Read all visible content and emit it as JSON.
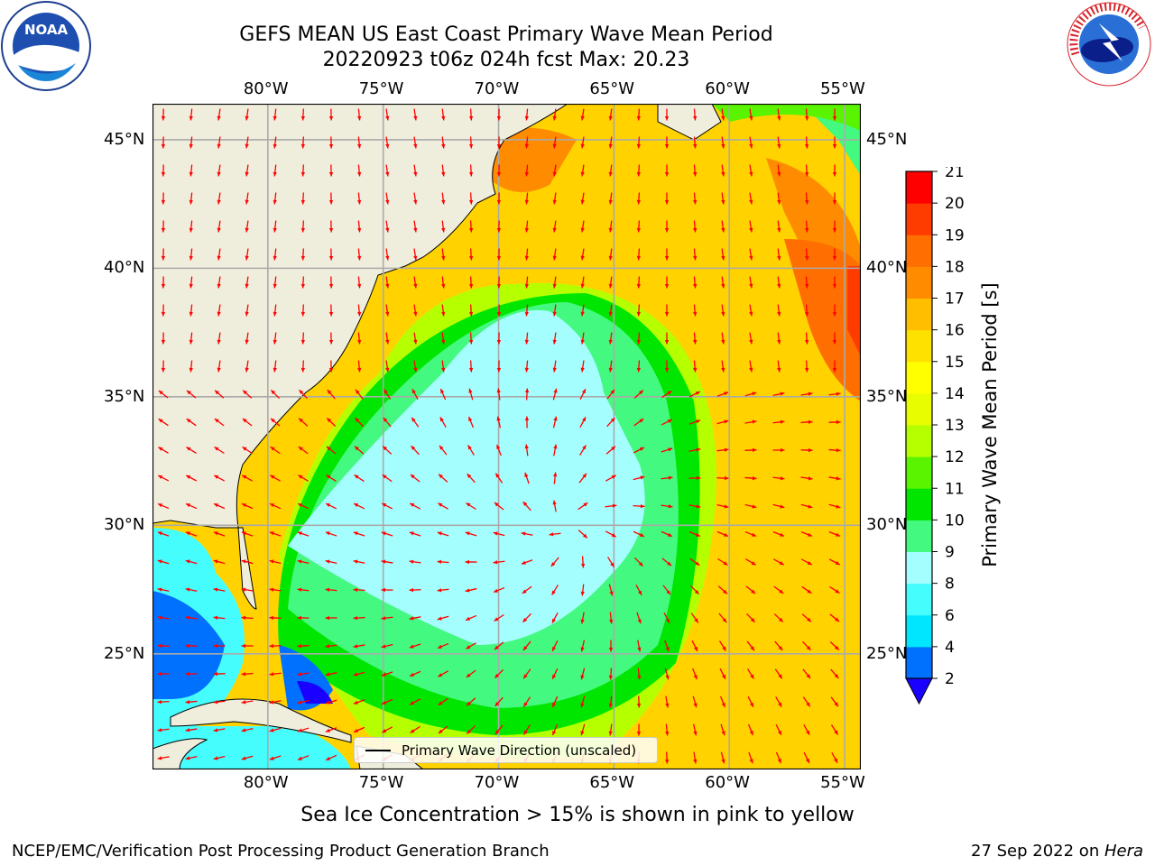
{
  "title_line1": "GEFS MEAN US East Coast Primary Wave Mean Period",
  "title_line2": "20220923 t06z 024h fcst   Max: 20.23",
  "logos": {
    "left": "NOAA",
    "right": "NATIONAL WEATHER SERVICE",
    "left_ring": "NATIONAL OCEANIC AND ATMOSPHERIC ADMINISTRATION · U.S. DEPARTMENT OF COMMERCE"
  },
  "map": {
    "lon_range": [
      -85,
      -54.3
    ],
    "lat_range": [
      20.5,
      46.4
    ],
    "lon_ticks": [
      -80,
      -75,
      -70,
      -65,
      -60,
      -55
    ],
    "lat_ticks": [
      45,
      40,
      35,
      30,
      25
    ],
    "lon_labels": [
      "80°W",
      "75°W",
      "70°W",
      "65°W",
      "60°W",
      "55°W"
    ],
    "lat_labels": [
      "45°N",
      "40°N",
      "35°N",
      "30°N",
      "25°N"
    ],
    "land_color": "#efeddc",
    "grid_color": "#aaaaaa",
    "arrow_color": "#ff0000",
    "legend_label": "Primary Wave Direction (unscaled)"
  },
  "colorbar": {
    "label": "Primary Wave Mean Period [s]",
    "levels": [
      2,
      4,
      6,
      8,
      9,
      10,
      11,
      12,
      13,
      14,
      15,
      16,
      17,
      18,
      19,
      20,
      21
    ],
    "colors": [
      "#0070ff",
      "#00e6ff",
      "#46fdfe",
      "#a5fefe",
      "#44f97f",
      "#00e600",
      "#5af300",
      "#b6ff00",
      "#e7fd00",
      "#ffff00",
      "#ffe100",
      "#ffbe00",
      "#ff8c00",
      "#ff6e00",
      "#ff3c00",
      "#ff0000"
    ],
    "extend_color": "#1a00ff"
  },
  "subcaption": "Sea Ice Concentration > 15% is shown in pink to yellow",
  "footer_left": "NCEP/EMC/Verification Post Processing Product Generation Branch",
  "footer_right_text": "27 Sep 2022 on ",
  "footer_right_italic": "Hera"
}
